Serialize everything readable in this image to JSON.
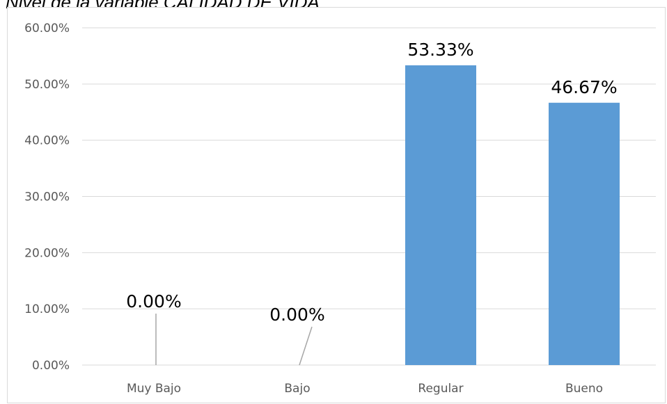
{
  "caption": "Nivel de la variable CALIDAD DE VIDA",
  "chart_data": {
    "type": "bar",
    "title": "",
    "xlabel": "",
    "ylabel": "",
    "categories": [
      "Muy Bajo",
      "Bajo",
      "Regular",
      "Bueno"
    ],
    "values": [
      0.0,
      0.0,
      53.33,
      46.67
    ],
    "data_labels": [
      "0.00%",
      "0.00%",
      "53.33%",
      "46.67%"
    ],
    "ylim": [
      0,
      60
    ],
    "yticks": [
      0,
      10,
      20,
      30,
      40,
      50,
      60
    ],
    "ytick_labels": [
      "0.00%",
      "10.00%",
      "20.00%",
      "30.00%",
      "40.00%",
      "50.00%",
      "60.00%"
    ],
    "grid": true,
    "legend": "none",
    "bar_color": "#5b9bd5",
    "grid_color": "#d9d9d9"
  }
}
